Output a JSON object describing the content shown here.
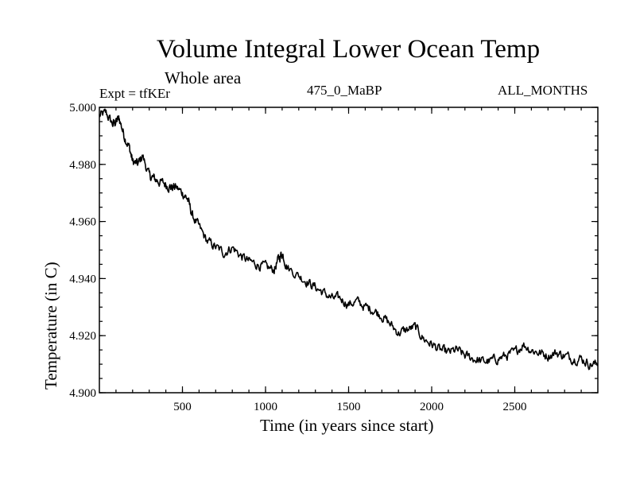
{
  "chart_data": {
    "type": "line",
    "title": "Volume Integral Lower Ocean Temp",
    "subtitle": "Whole area",
    "annotations": {
      "expt": "Expt = tfKEr",
      "period": "475_0_MaBP",
      "months": "ALL_MONTHS"
    },
    "xlabel": "Time (in years since start)",
    "ylabel": "Temperature (in C)",
    "xlim": [
      0,
      3000
    ],
    "ylim": [
      4.9,
      5.0
    ],
    "x_ticks": [
      500,
      1000,
      1500,
      2000,
      2500
    ],
    "x_tick_labels": [
      "500",
      "1000",
      "1500",
      "2000",
      "2500"
    ],
    "y_ticks": [
      4.9,
      4.92,
      4.94,
      4.96,
      4.98,
      5.0
    ],
    "y_tick_labels": [
      "4.900",
      "4.920",
      "4.940",
      "4.960",
      "4.980",
      "5.000"
    ],
    "grid": false,
    "legend": "none",
    "color": "#000000",
    "series": [
      {
        "x": [
          0,
          40,
          80,
          100,
          120,
          150,
          180,
          200,
          230,
          260,
          300,
          330,
          360,
          400,
          430,
          460,
          500,
          530,
          560,
          600,
          650,
          700,
          750,
          800,
          850,
          900,
          950,
          1000,
          1050,
          1080,
          1100,
          1130,
          1200,
          1250,
          1300,
          1350,
          1400,
          1450,
          1500,
          1550,
          1600,
          1650,
          1700,
          1750,
          1800,
          1850,
          1900,
          1950,
          2000,
          2050,
          2100,
          2150,
          2200,
          2250,
          2300,
          2350,
          2400,
          2450,
          2500,
          2550,
          2600,
          2650,
          2700,
          2750,
          2800,
          2850,
          2900,
          2950,
          3000
        ],
        "y": [
          4.997,
          4.998,
          4.994,
          4.995,
          4.996,
          4.99,
          4.986,
          4.981,
          4.98,
          4.983,
          4.976,
          4.975,
          4.974,
          4.973,
          4.972,
          4.972,
          4.97,
          4.968,
          4.962,
          4.958,
          4.953,
          4.951,
          4.949,
          4.951,
          4.948,
          4.946,
          4.945,
          4.944,
          4.943,
          4.947,
          4.949,
          4.944,
          4.941,
          4.939,
          4.937,
          4.935,
          4.933,
          4.933,
          4.931,
          4.932,
          4.93,
          4.929,
          4.927,
          4.924,
          4.921,
          4.922,
          4.923,
          4.919,
          4.917,
          4.915,
          4.914,
          4.915,
          4.913,
          4.912,
          4.911,
          4.911,
          4.912,
          4.913,
          4.914,
          4.917,
          4.915,
          4.914,
          4.913,
          4.914,
          4.913,
          4.912,
          4.912,
          4.91,
          4.91
        ]
      }
    ]
  }
}
